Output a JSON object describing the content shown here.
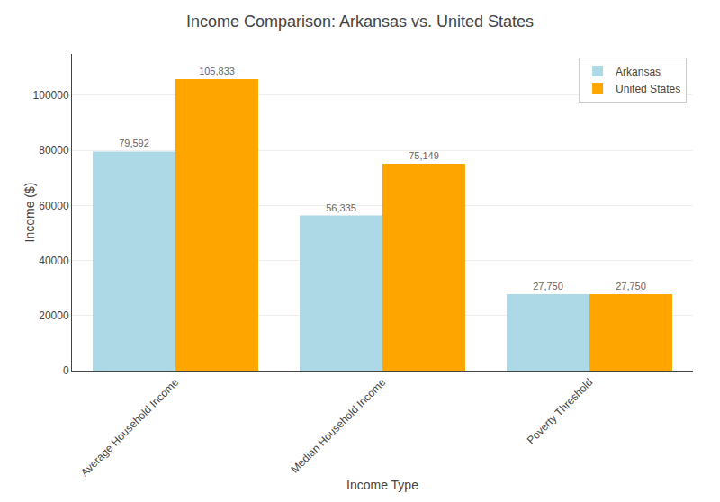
{
  "chart_data": {
    "type": "bar",
    "title": "Income Comparison: Arkansas vs. United States",
    "xlabel": "Income Type",
    "ylabel": "Income ($)",
    "categories": [
      "Average Household Income",
      "Median Household Income",
      "Poverty Threshold"
    ],
    "series": [
      {
        "name": "Arkansas",
        "color": "#add8e6",
        "values": [
          79592,
          56335,
          27750
        ],
        "value_labels": [
          "79,592",
          "56,335",
          "27,750"
        ]
      },
      {
        "name": "United States",
        "color": "#FFA500",
        "values": [
          105833,
          75149,
          27750
        ],
        "value_labels": [
          "105,833",
          "75,149",
          "27,750"
        ]
      }
    ],
    "ylim": [
      0,
      115000
    ],
    "yticks": [
      0,
      20000,
      40000,
      60000,
      80000,
      100000
    ],
    "grid": true,
    "legend": "upper right",
    "data_labels": true
  }
}
